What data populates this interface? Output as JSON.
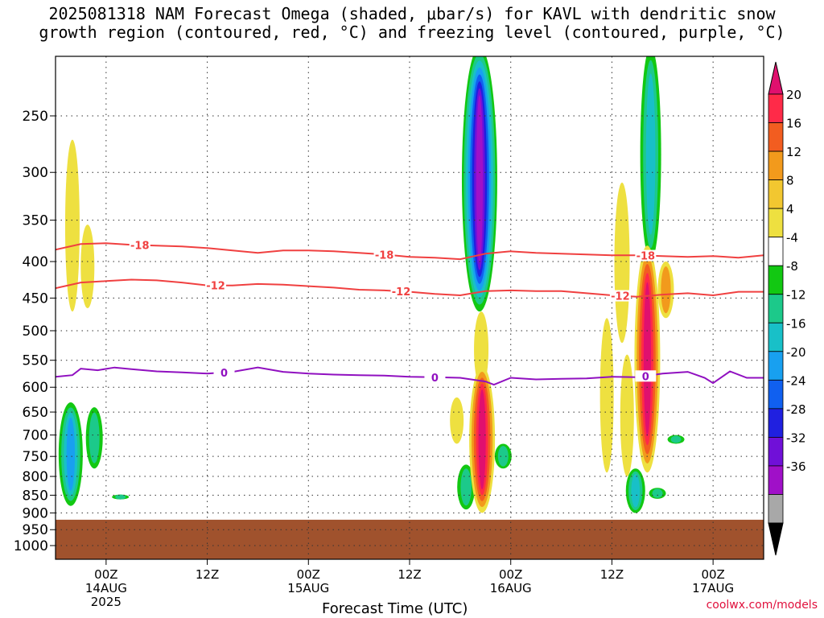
{
  "chart_data": {
    "type": "heatmap",
    "title_line1": "2025081318 NAM Forecast Omega (shaded, μbar/s) for KAVL with dendritic snow",
    "title_line2": "growth region (contoured, red, °C) and freezing level (contoured, purple, °C)",
    "xlabel": "Forecast Time (UTC)",
    "ylabel": "",
    "y_ticks": [
      250,
      300,
      350,
      400,
      450,
      500,
      550,
      600,
      650,
      700,
      750,
      800,
      850,
      900,
      950,
      1000
    ],
    "x_ticks": [
      {
        "hour": 6,
        "label": "00Z",
        "sub": "14AUG",
        "sub2": "2025"
      },
      {
        "hour": 18,
        "label": "12Z",
        "sub": "",
        "sub2": ""
      },
      {
        "hour": 30,
        "label": "00Z",
        "sub": "15AUG",
        "sub2": ""
      },
      {
        "hour": 42,
        "label": "12Z",
        "sub": "",
        "sub2": ""
      },
      {
        "hour": 54,
        "label": "00Z",
        "sub": "16AUG",
        "sub2": ""
      },
      {
        "hour": 66,
        "label": "12Z",
        "sub": "",
        "sub2": ""
      },
      {
        "hour": 78,
        "label": "00Z",
        "sub": "17AUG",
        "sub2": ""
      }
    ],
    "x_range_hours": [
      0,
      84
    ],
    "p_top": 200,
    "surface_pressure_hpa": 920,
    "colorbar": {
      "labels": [
        "20",
        "16",
        "12",
        "8",
        "4",
        "-4",
        "-8",
        "-12",
        "-16",
        "-20",
        "-24",
        "-28",
        "-32",
        "-36"
      ],
      "colors": [
        "#ff2a48",
        "#f25d20",
        "#f29a1c",
        "#f2c730",
        "#eee040",
        "#ffffff",
        "#12c812",
        "#1cc98a",
        "#18c0c8",
        "#18a0f0",
        "#1060f0",
        "#2020e0",
        "#7010d8",
        "#a010c8",
        "#a8a8a8"
      ],
      "top_color": "#e0106e",
      "bottom_color": "#000000"
    },
    "contours": [
      {
        "name": "-18",
        "color": "#f04040",
        "label_hours": [
          10,
          39,
          70
        ],
        "points": [
          [
            0,
            385
          ],
          [
            3,
            378
          ],
          [
            6,
            377
          ],
          [
            9,
            379
          ],
          [
            12,
            380
          ],
          [
            15,
            381
          ],
          [
            18,
            383
          ],
          [
            21,
            386
          ],
          [
            24,
            389
          ],
          [
            27,
            386
          ],
          [
            30,
            386
          ],
          [
            33,
            387
          ],
          [
            36,
            389
          ],
          [
            39,
            391
          ],
          [
            42,
            394
          ],
          [
            45,
            395
          ],
          [
            48,
            397
          ],
          [
            51,
            390
          ],
          [
            54,
            387
          ],
          [
            57,
            389
          ],
          [
            60,
            390
          ],
          [
            63,
            391
          ],
          [
            66,
            392
          ],
          [
            69,
            392
          ],
          [
            72,
            393
          ],
          [
            75,
            394
          ],
          [
            78,
            393
          ],
          [
            81,
            395
          ],
          [
            84,
            392
          ]
        ]
      },
      {
        "name": "-12",
        "color": "#f04040",
        "label_hours": [
          19,
          41,
          67
        ],
        "points": [
          [
            0,
            436
          ],
          [
            3,
            428
          ],
          [
            6,
            426
          ],
          [
            9,
            424
          ],
          [
            12,
            425
          ],
          [
            15,
            428
          ],
          [
            18,
            432
          ],
          [
            21,
            432
          ],
          [
            24,
            430
          ],
          [
            27,
            431
          ],
          [
            30,
            433
          ],
          [
            33,
            435
          ],
          [
            36,
            438
          ],
          [
            39,
            439
          ],
          [
            42,
            441
          ],
          [
            45,
            444
          ],
          [
            48,
            446
          ],
          [
            51,
            440
          ],
          [
            54,
            439
          ],
          [
            57,
            440
          ],
          [
            60,
            440
          ],
          [
            63,
            443
          ],
          [
            66,
            446
          ],
          [
            69,
            448
          ],
          [
            72,
            445
          ],
          [
            75,
            443
          ],
          [
            78,
            446
          ],
          [
            81,
            441
          ],
          [
            84,
            441
          ]
        ]
      },
      {
        "name": "0",
        "color": "#9010c0",
        "label_hours": [
          20,
          45,
          70
        ],
        "points": [
          [
            0,
            580
          ],
          [
            2,
            577
          ],
          [
            3,
            565
          ],
          [
            5,
            568
          ],
          [
            7,
            563
          ],
          [
            9,
            566
          ],
          [
            12,
            570
          ],
          [
            15,
            572
          ],
          [
            18,
            574
          ],
          [
            21,
            571
          ],
          [
            24,
            563
          ],
          [
            27,
            571
          ],
          [
            30,
            574
          ],
          [
            33,
            576
          ],
          [
            36,
            577
          ],
          [
            39,
            578
          ],
          [
            42,
            580
          ],
          [
            45,
            581
          ],
          [
            48,
            582
          ],
          [
            51,
            589
          ],
          [
            52,
            595
          ],
          [
            54,
            582
          ],
          [
            57,
            585
          ],
          [
            60,
            584
          ],
          [
            63,
            583
          ],
          [
            66,
            580
          ],
          [
            69,
            581
          ],
          [
            72,
            574
          ],
          [
            75,
            571
          ],
          [
            77,
            582
          ],
          [
            78,
            592
          ],
          [
            80,
            570
          ],
          [
            82,
            582
          ],
          [
            84,
            582
          ]
        ]
      }
    ],
    "omega_features": [
      {
        "hour": 2.0,
        "p_top": 270,
        "p_bot": 470,
        "value": 6
      },
      {
        "hour": 3.8,
        "p_top": 355,
        "p_bot": 465,
        "value": 5
      },
      {
        "hour": 1.8,
        "p_top": 630,
        "p_bot": 880,
        "value": -18
      },
      {
        "hour": 4.6,
        "p_top": 640,
        "p_bot": 780,
        "value": -9
      },
      {
        "hour": 7.7,
        "p_top": 850,
        "p_bot": 860,
        "value": -9
      },
      {
        "hour": 47.6,
        "p_top": 620,
        "p_bot": 720,
        "value": 5
      },
      {
        "hour": 48.7,
        "p_top": 770,
        "p_bot": 890,
        "value": -10
      },
      {
        "hour": 50.3,
        "p_top": 200,
        "p_bot": 470,
        "value": -32
      },
      {
        "hour": 50.5,
        "p_top": 470,
        "p_bot": 600,
        "value": 6
      },
      {
        "hour": 50.6,
        "p_top": 560,
        "p_bot": 900,
        "value": 20
      },
      {
        "hour": 53.1,
        "p_top": 720,
        "p_bot": 780,
        "value": -9
      },
      {
        "hour": 65.4,
        "p_top": 480,
        "p_bot": 790,
        "value": 5
      },
      {
        "hour": 67.2,
        "p_top": 310,
        "p_bot": 520,
        "value": 7
      },
      {
        "hour": 67.8,
        "p_top": 540,
        "p_bot": 800,
        "value": 5
      },
      {
        "hour": 68.8,
        "p_top": 780,
        "p_bot": 900,
        "value": -12
      },
      {
        "hour": 70.6,
        "p_top": 200,
        "p_bot": 400,
        "value": -14
      },
      {
        "hour": 70.2,
        "p_top": 380,
        "p_bot": 790,
        "value": 20
      },
      {
        "hour": 72.4,
        "p_top": 400,
        "p_bot": 480,
        "value": 8
      },
      {
        "hour": 71.4,
        "p_top": 830,
        "p_bot": 860,
        "value": -9
      },
      {
        "hour": 73.6,
        "p_top": 700,
        "p_bot": 720,
        "value": -9
      }
    ]
  },
  "watermark": "coolwx.com/models"
}
